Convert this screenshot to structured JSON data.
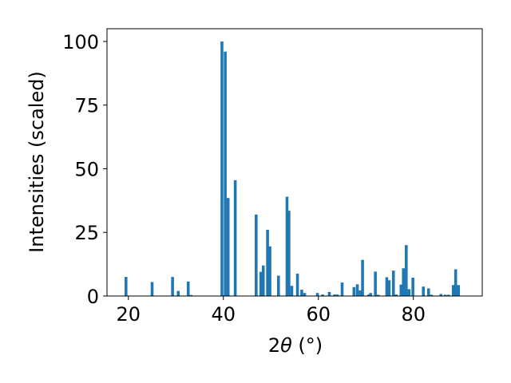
{
  "chart_data": {
    "type": "bar",
    "xlabel_main": "2",
    "xlabel_theta": "θ",
    "xlabel_unit": " (°)",
    "ylabel": "Intensities (scaled)",
    "xlim": [
      15.5,
      94.5
    ],
    "ylim": [
      0,
      105
    ],
    "xticks": [
      20,
      40,
      60,
      80
    ],
    "yticks": [
      0,
      25,
      50,
      75,
      100
    ],
    "grid": false,
    "bar_width": 0.6,
    "bar_color": "#1f77b4",
    "x": [
      19.5,
      25.0,
      29.3,
      30.5,
      32.6,
      33.2,
      39.7,
      40.4,
      41.0,
      42.5,
      46.9,
      47.9,
      48.4,
      49.3,
      49.8,
      51.6,
      53.4,
      53.8,
      54.4,
      55.6,
      56.5,
      57.1,
      59.8,
      60.9,
      62.3,
      63.4,
      64.0,
      65.0,
      67.5,
      68.2,
      68.8,
      69.3,
      70.6,
      71.0,
      72.0,
      72.6,
      74.4,
      74.9,
      75.8,
      76.4,
      77.4,
      77.9,
      78.5,
      79.1,
      79.9,
      82.1,
      83.2,
      83.8,
      85.8,
      86.7,
      87.4,
      88.4,
      88.9,
      89.5
    ],
    "values": [
      7.5,
      5.5,
      7.5,
      2.0,
      5.7,
      0.4,
      100.0,
      96.0,
      38.5,
      45.5,
      32.0,
      9.5,
      12.0,
      26.0,
      19.5,
      8.0,
      39.0,
      33.5,
      4.0,
      8.8,
      2.5,
      1.2,
      1.2,
      0.6,
      1.6,
      0.6,
      0.6,
      5.3,
      3.5,
      4.6,
      2.2,
      14.2,
      0.6,
      1.2,
      9.6,
      0.5,
      7.4,
      6.2,
      10.0,
      0.6,
      4.5,
      10.9,
      20.0,
      2.7,
      7.2,
      3.7,
      3.0,
      0.5,
      0.8,
      0.5,
      0.5,
      4.3,
      10.5,
      4.3
    ]
  }
}
